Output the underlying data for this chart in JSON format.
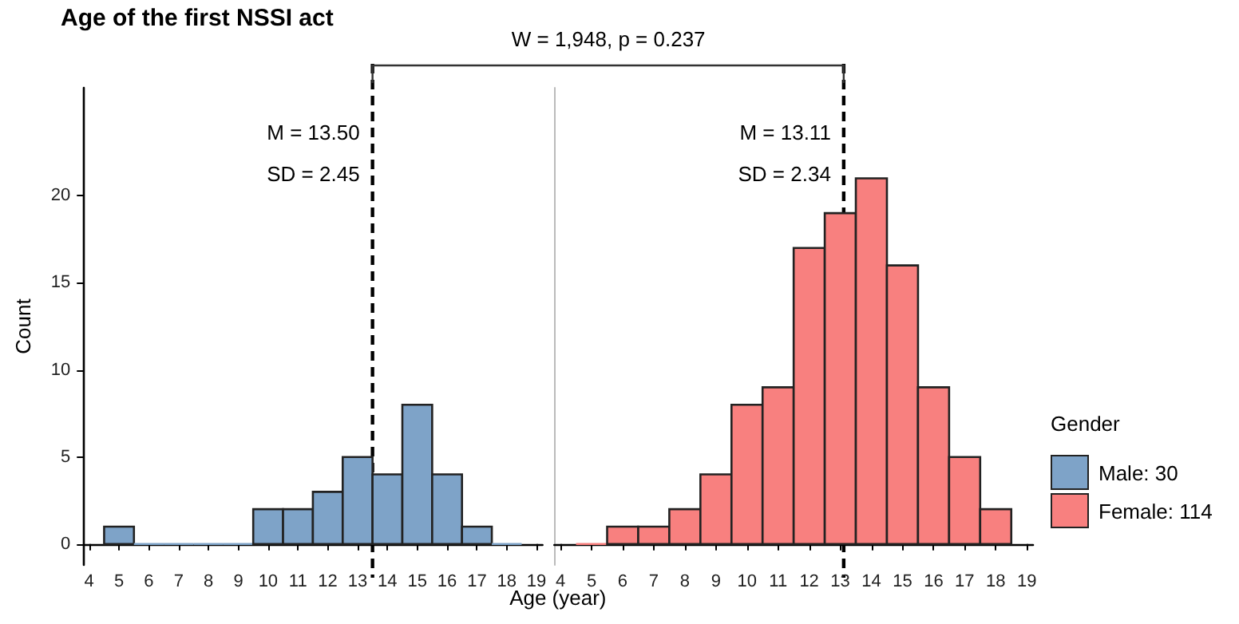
{
  "chart_data": [
    {
      "type": "histogram",
      "title": "Age of the first NSSI act",
      "xlabel": "Age (year)",
      "ylabel": "Count",
      "annotations": [
        "W = 1,948, p = 0.237"
      ],
      "bins": [
        4.5,
        5.5,
        6.5,
        7.5,
        8.5,
        9.5,
        10.5,
        11.5,
        12.5,
        13.5,
        14.5,
        15.5,
        16.5,
        17.5,
        18.5
      ],
      "series": [
        {
          "name": "Male: 30",
          "color": "#7ea3c8",
          "values": [
            1,
            0,
            0,
            0,
            0,
            2,
            2,
            3,
            5,
            4,
            8,
            4,
            1,
            0
          ]
        }
      ],
      "xlim": [
        3.8,
        19.2
      ],
      "xticks": [
        4,
        5,
        6,
        7,
        8,
        9,
        10,
        11,
        12,
        13,
        14,
        15,
        16,
        17,
        18,
        19
      ],
      "ylim": [
        -1.2,
        26.2
      ],
      "yticks": [
        0,
        5,
        10,
        15,
        20
      ],
      "ref_lines": [
        {
          "axis": "x",
          "value": 13.5,
          "label": "M = 13.50\nSD = 2.45",
          "line_style": "dashed",
          "color": "#000000"
        }
      ],
      "legend": "right"
    },
    {
      "type": "histogram",
      "legend_title": "Gender",
      "bins": [
        4.5,
        5.5,
        6.5,
        7.5,
        8.5,
        9.5,
        10.5,
        11.5,
        12.5,
        13.5,
        14.5,
        15.5,
        16.5,
        17.5,
        18.5
      ],
      "series": [
        {
          "name": "Female: 114",
          "color": "#f8807f",
          "values": [
            0,
            1,
            1,
            2,
            4,
            8,
            9,
            17,
            19,
            21,
            16,
            9,
            5,
            2
          ]
        }
      ],
      "xlim": [
        3.8,
        19.2
      ],
      "xticks": [
        4,
        5,
        6,
        7,
        8,
        9,
        10,
        11,
        12,
        13,
        14,
        15,
        16,
        17,
        18,
        19
      ],
      "ylim": [
        -1.2,
        26.2
      ],
      "yticks": [
        0,
        5,
        10,
        15,
        20
      ],
      "ref_lines": [
        {
          "axis": "x",
          "value": 13.11,
          "label": "M = 13.11\nSD = 2.34",
          "line_style": "dashed",
          "color": "#000000"
        }
      ],
      "legend": "right",
      "tick_labels": "x"
    }
  ]
}
